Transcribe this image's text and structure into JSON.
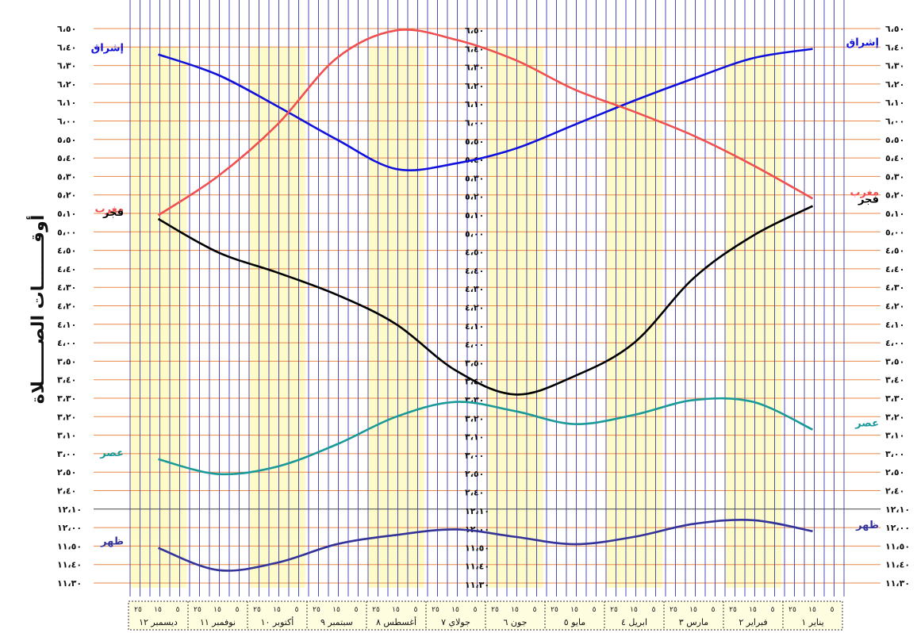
{
  "chart_data": {
    "type": "line",
    "title": "أوقـــــــات الصــــــلاة",
    "y_ticks": [
      "٦،٥٠",
      "٦،٤٠",
      "٦،٣٠",
      "٦،٢٠",
      "٦،١٠",
      "٦،٠٠",
      "٥،٥٠",
      "٥،٤٠",
      "٥،٣٠",
      "٥،٢٠",
      "٥،١٠",
      "٥،٠٠",
      "٤،٥٠",
      "٤،٤٠",
      "٤،٣٠",
      "٤،٢٠",
      "٤،١٠",
      "٤،٠٠",
      "٣،٥٠",
      "٣،٤٠",
      "٣،٣٠",
      "٣،٢٠",
      "٣،١٠",
      "٣،٠٠",
      "٢،٥٠",
      "٢،٤٠",
      "١٢،١٠",
      "١٢،٠٠",
      "١١،٥٠",
      "١١،٤٠",
      "١١،٣٠"
    ],
    "months": [
      "ديسمبر ١٢",
      "نوفمبر ١١",
      "أكتوبر ١٠",
      "سبتمبر ٩",
      "أغسطس ٨",
      "جولاي ٧",
      "جون ٦",
      "مايو ٥",
      "ابريل ٤",
      "مارس ٣",
      "فبراير ٢",
      "يناير ١"
    ],
    "day_ticks": [
      "٢٥",
      "١٥",
      "٥"
    ],
    "x_order": "right-to-left, January to December, days 5 / 15 / 25 of each month",
    "series": [
      {
        "name": "إشراق",
        "color": "#1111dd",
        "values": [
          6.39,
          6.34,
          6.23,
          6.11,
          5.58,
          5.45,
          5.37,
          5.34,
          5.5,
          6.08,
          6.25,
          6.36
        ]
      },
      {
        "name": "مغرب",
        "color": "#f05050",
        "values": [
          5.18,
          5.36,
          5.52,
          6.05,
          6.17,
          6.33,
          6.44,
          6.49,
          6.34,
          5.58,
          5.3,
          5.09
        ]
      },
      {
        "name": "فجر",
        "color": "#000000",
        "values": [
          5.14,
          4.58,
          4.35,
          4.0,
          3.42,
          3.32,
          3.45,
          4.1,
          4.26,
          4.38,
          4.49,
          5.07
        ]
      },
      {
        "name": "عصر",
        "color": "#1a9999",
        "values": [
          3.13,
          3.28,
          3.29,
          3.21,
          3.16,
          3.23,
          3.28,
          3.2,
          3.05,
          2.53,
          2.49,
          2.57
        ]
      },
      {
        "name": "ظهر",
        "color": "#333399",
        "values": [
          11.58,
          12.04,
          12.02,
          11.55,
          11.51,
          11.55,
          11.59,
          11.56,
          11.51,
          11.41,
          11.37,
          11.49
        ]
      }
    ],
    "grid": true
  }
}
